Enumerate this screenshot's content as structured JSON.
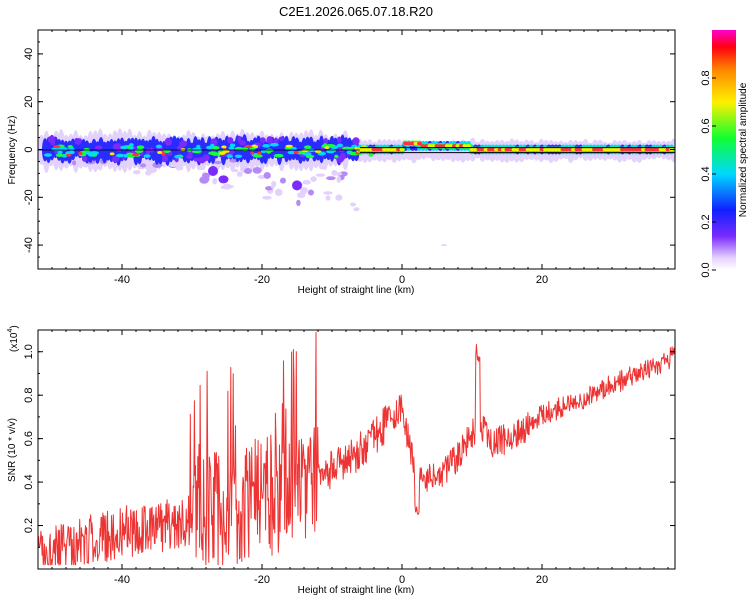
{
  "title": "C2E1.2026.065.07.18.R20",
  "chart_data": [
    {
      "type": "heatmap",
      "name": "spectrogram",
      "xlabel": "Height of straight line (km)",
      "ylabel": "Frequency (Hz)",
      "xlim": [
        -52,
        39
      ],
      "ylim": [
        -50,
        50
      ],
      "xticks": [
        -40,
        -20,
        0,
        20
      ],
      "yticks": [
        -40,
        -20,
        0,
        20,
        40
      ],
      "colorbar": {
        "label": "Normalized spectral amplitude",
        "range": [
          0,
          1
        ],
        "ticks": [
          "0.0",
          "0.2",
          "0.4",
          "0.6",
          "0.8"
        ],
        "tick_values": [
          0,
          0.2,
          0.4,
          0.6,
          0.8
        ]
      },
      "band": {
        "center_hz": 0,
        "halfwidth_hz": 3,
        "description": "energy concentrated near 0 Hz along entire height range; scattered weak returns down to -25 Hz between -50 and -8 km"
      }
    },
    {
      "type": "line",
      "name": "snr",
      "xlabel": "Height of straight line (km)",
      "ylabel": "SNR (10 * v/v)",
      "yunit": "(x10",
      "yunit_exp": "4",
      "xlim": [
        -52,
        39
      ],
      "ylim": [
        0,
        1.1
      ],
      "xticks": [
        -40,
        -20,
        0,
        20
      ],
      "yticks": [
        0.2,
        0.4,
        0.6,
        0.8,
        1.0
      ],
      "line_color": "#ee3333",
      "trend": {
        "x": [
          -52,
          -45,
          -40,
          -35,
          -30,
          -25,
          -20,
          -15,
          -12,
          -8,
          -5,
          -2,
          0,
          2,
          3,
          6,
          8,
          10,
          11,
          13,
          15,
          18,
          20,
          25,
          30,
          35,
          39
        ],
        "y": [
          0.07,
          0.13,
          0.17,
          0.19,
          0.23,
          0.28,
          0.33,
          0.36,
          0.42,
          0.5,
          0.57,
          0.68,
          0.74,
          0.42,
          0.4,
          0.44,
          0.52,
          0.62,
          0.66,
          0.58,
          0.6,
          0.66,
          0.71,
          0.77,
          0.85,
          0.92,
          0.98
        ]
      }
    }
  ]
}
